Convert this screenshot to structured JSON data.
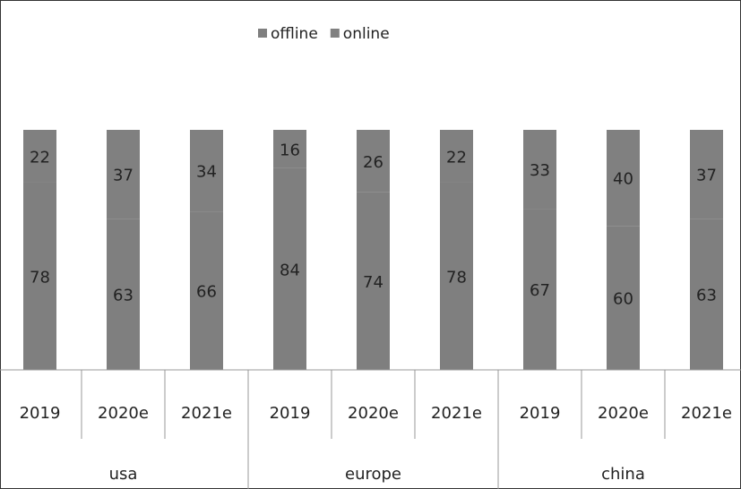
{
  "chart_data": {
    "type": "stacked_bar",
    "categories": [
      "2019",
      "2020e",
      "2021e",
      "2019",
      "2020e",
      "2021e",
      "2019",
      "2020e",
      "2021e"
    ],
    "groups": [
      "usa",
      "europe",
      "china"
    ],
    "series": [
      {
        "name": "offline",
        "color": "#7f7f7f",
        "values": [
          78,
          63,
          66,
          84,
          74,
          78,
          67,
          60,
          63
        ]
      },
      {
        "name": "online",
        "color": "#808080",
        "values": [
          22,
          37,
          34,
          16,
          26,
          22,
          33,
          40,
          37
        ]
      }
    ],
    "legend": "top"
  }
}
